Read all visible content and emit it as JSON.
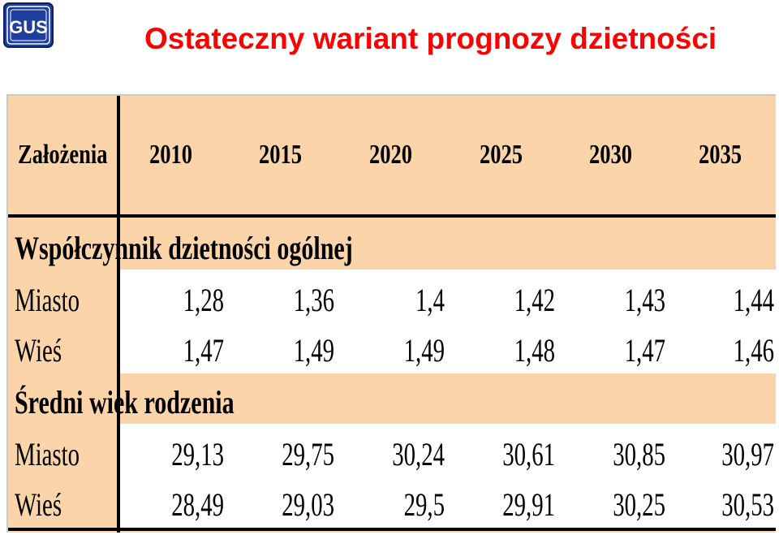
{
  "header": {
    "logo_text": "GUS",
    "title": "Ostateczny wariant prognozy dzietności"
  },
  "table": {
    "header_label": "Założenia",
    "years": [
      "2010",
      "2015",
      "2020",
      "2025",
      "2030",
      "2035"
    ],
    "sections": [
      {
        "title": "Współczynnik dzietności ogólnej",
        "rows": [
          {
            "label": "Miasto",
            "values": [
              "1,28",
              "1,36",
              "1,4",
              "1,42",
              "1,43",
              "1,44"
            ]
          },
          {
            "label": "Wieś",
            "values": [
              "1,47",
              "1,49",
              "1,49",
              "1,48",
              "1,47",
              "1,46"
            ]
          }
        ]
      },
      {
        "title": "Średni wiek rodzenia",
        "rows": [
          {
            "label": "Miasto",
            "values": [
              "29,13",
              "29,75",
              "30,24",
              "30,61",
              "30,85",
              "30,97"
            ]
          },
          {
            "label": "Wieś",
            "values": [
              "28,49",
              "29,03",
              "29,5",
              "29,91",
              "30,25",
              "30,53"
            ]
          }
        ]
      }
    ]
  },
  "colors": {
    "title": "#ff0000",
    "table_background": "#fbd4a9",
    "logo_blue": "#1f3f9f"
  }
}
